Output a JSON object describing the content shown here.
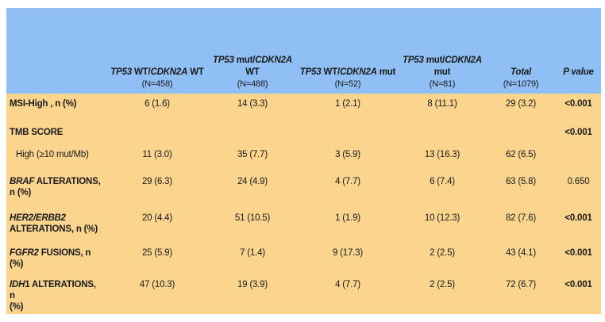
{
  "table": {
    "headers": [
      {
        "line1": "",
        "line2": ""
      },
      {
        "line1_a": "TP53",
        "line1_b": " WT/",
        "line1_c": "CDKN2A",
        "line1_d": " WT",
        "line2": "(N=458)"
      },
      {
        "line1_a": "TP53",
        "line1_b": " mut/",
        "line1_c": "CDKN2A",
        "line1_mid": "WT",
        "line2": "(N=488)"
      },
      {
        "line1_a": "TP53",
        "line1_b": " WT/",
        "line1_c": "CDKN2A",
        "line1_d": " mut",
        "line2": "(N=52)"
      },
      {
        "line1_a": "TP53",
        "line1_b": " mut/",
        "line1_c": "CDKN2A",
        "line1_mid": "mut",
        "line2": "(N=81)"
      },
      {
        "line1": "Total",
        "line2": "(N=1079)"
      },
      {
        "line1": "P value",
        "line2": ""
      }
    ],
    "rows": [
      {
        "gene": "",
        "label": "MSI-High , n (%)",
        "label2": "",
        "c1": "6 (1.6)",
        "c2": "14 (3.3)",
        "c3": "1 (2.1)",
        "c4": "8 (11.1)",
        "total": "29 (3.2)",
        "p": "<0.001",
        "p_bold": true
      },
      {
        "gene": "",
        "label": "TMB SCORE",
        "label2": "",
        "c1": "",
        "c2": "",
        "c3": "",
        "c4": "",
        "total": "",
        "p": "<0.001",
        "p_bold": true
      },
      {
        "gene": "",
        "label": "High (≥10 mut/Mb)",
        "label2": "",
        "c1": "11 (3.0)",
        "c2": "35 (7.7)",
        "c3": "3 (5.9)",
        "c4": "13 (16.3)",
        "total": "62 (6.5)",
        "p": "",
        "p_bold": false,
        "sub": true
      },
      {
        "gene": "BRAF",
        "label": " ALTERATIONS,",
        "label2": "n (%)",
        "c1": "29 (6.3)",
        "c2": "24 (4.9)",
        "c3": "4 (7.7)",
        "c4": "6 (7.4)",
        "total": "63 (5.8)",
        "p": "0.650",
        "p_bold": false
      },
      {
        "gene": "HER2/ERBB2",
        "label": "",
        "label2": "ALTERATIONS, n (%)",
        "c1": "20 (4.4)",
        "c2": "51 (10.5)",
        "c3": "1 (1.9)",
        "c4": "10 (12.3)",
        "total": "82 (7.6)",
        "p": "<0.001",
        "p_bold": true
      },
      {
        "gene": "FGFR2",
        "label": " FUSIONS, n",
        "label2": "(%)",
        "c1": "25 (5.9)",
        "c2": "7 (1.4)",
        "c3": "9 (17.3)",
        "c4": "2 (2.5)",
        "total": "43 (4.1)",
        "p": "<0.001",
        "p_bold": true
      },
      {
        "gene": "IDH",
        "label": "1 ALTERATIONS, n",
        "label2": "(%)",
        "c1": "47 (10.3)",
        "c2": "19 (3.9)",
        "c3": "4 (7.7)",
        "c4": "2 (2.5)",
        "total": "72 (6.7)",
        "p": "<0.001",
        "p_bold": true
      }
    ]
  },
  "colors": {
    "header_bg": "#8fbff5",
    "body_bg": "#fbd58e"
  }
}
